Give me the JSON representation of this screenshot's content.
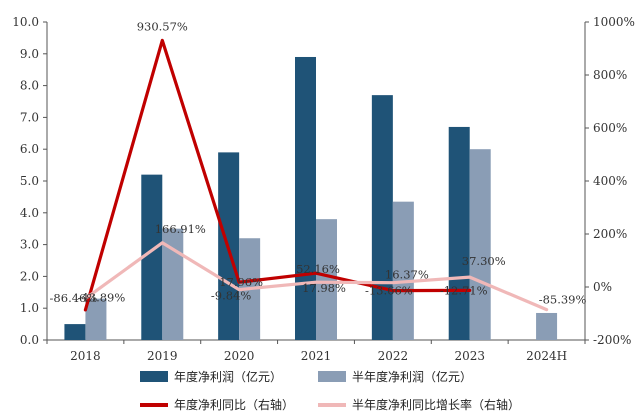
{
  "chart_data": {
    "type": "bar",
    "categories": [
      "2018",
      "2019",
      "2020",
      "2021",
      "2022",
      "2023",
      "2024H"
    ],
    "series": [
      {
        "name": "年度净利润（亿元）",
        "type": "bar",
        "axis": "left",
        "color": "#1f5377",
        "values": [
          0.5,
          5.2,
          5.9,
          8.9,
          7.7,
          6.7,
          null
        ]
      },
      {
        "name": "半年度净利润（亿元）",
        "type": "bar",
        "axis": "left",
        "color": "#8a9db5",
        "values": [
          1.3,
          3.5,
          3.2,
          3.8,
          4.35,
          6.0,
          0.85
        ]
      },
      {
        "name": "年度净利同比（右轴）",
        "type": "line",
        "axis": "right",
        "color": "#c00000",
        "values": [
          -86.46,
          930.57,
          17.96,
          52.16,
          -13.66,
          -12.71,
          null
        ],
        "labels": [
          "-86.46%",
          "930.57%",
          "17.96%",
          "52.16%",
          "-13.66%",
          "-12.71%",
          ""
        ]
      },
      {
        "name": "半年度净利同比增长率（右轴）",
        "type": "line",
        "axis": "right",
        "color": "#f0b8b8",
        "values": [
          -43.89,
          166.91,
          -9.84,
          17.98,
          16.37,
          37.3,
          -85.39
        ],
        "labels": [
          "-43.89%",
          "166.91%",
          "-9.84%",
          "17.98%",
          "16.37%",
          "37.30%",
          "-85.39%"
        ]
      }
    ],
    "y_left": {
      "min": 0,
      "max": 10,
      "ticks": [
        "0.0",
        "1.0",
        "2.0",
        "3.0",
        "4.0",
        "5.0",
        "6.0",
        "7.0",
        "8.0",
        "9.0",
        "10.0"
      ]
    },
    "y_right": {
      "min": -200,
      "max": 1000,
      "ticks": [
        "-200%",
        "0%",
        "200%",
        "400%",
        "600%",
        "800%",
        "1000%"
      ]
    },
    "title": "",
    "xlabel": "",
    "ylabel": "",
    "grid": false,
    "legend_position": "bottom"
  }
}
